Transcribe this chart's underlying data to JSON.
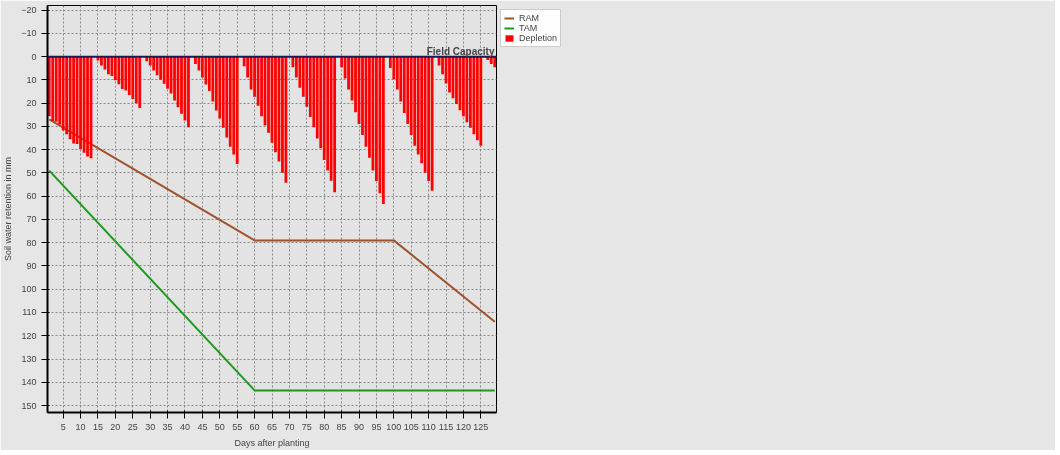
{
  "chart_data": {
    "type": "bar",
    "xlabel": "Days after planting",
    "ylabel": "Soil water retention in mm",
    "x": [
      1,
      2,
      3,
      4,
      5,
      6,
      7,
      8,
      9,
      10,
      11,
      12,
      13,
      14,
      15,
      16,
      17,
      18,
      19,
      20,
      21,
      22,
      23,
      24,
      25,
      26,
      27,
      28,
      29,
      30,
      31,
      32,
      33,
      34,
      35,
      36,
      37,
      38,
      39,
      40,
      41,
      42,
      43,
      44,
      45,
      46,
      47,
      48,
      49,
      50,
      51,
      52,
      53,
      54,
      55,
      56,
      57,
      58,
      59,
      60,
      61,
      62,
      63,
      64,
      65,
      66,
      67,
      68,
      69,
      70,
      71,
      72,
      73,
      74,
      75,
      76,
      77,
      78,
      79,
      80,
      81,
      82,
      83,
      84,
      85,
      86,
      87,
      88,
      89,
      90,
      91,
      92,
      93,
      94,
      95,
      96,
      97,
      98,
      99,
      100,
      101,
      102,
      103,
      104,
      105,
      106,
      107,
      108,
      109,
      110,
      111,
      112,
      113,
      114,
      115,
      116,
      117,
      118,
      119,
      120,
      121,
      122,
      123,
      124,
      125,
      126,
      127,
      128,
      129
    ],
    "xlim": [
      0.5,
      129.5
    ],
    "xticks": [
      5,
      10,
      15,
      20,
      25,
      30,
      35,
      40,
      45,
      50,
      55,
      60,
      65,
      70,
      75,
      80,
      85,
      90,
      95,
      100,
      105,
      110,
      115,
      120,
      125
    ],
    "ylim": [
      153,
      -22
    ],
    "yticks": [
      -20,
      -10,
      0,
      10,
      20,
      30,
      40,
      50,
      60,
      70,
      80,
      90,
      100,
      110,
      120,
      130,
      140,
      150
    ],
    "grid": true,
    "legend": "right",
    "series": [
      {
        "name": "RAM",
        "type": "line",
        "color": "#a0522d",
        "x": [
          1,
          60,
          100,
          129
        ],
        "values": [
          27,
          79,
          79,
          114
        ]
      },
      {
        "name": "TAM",
        "type": "line",
        "color": "#1e9a1e",
        "x": [
          1,
          60,
          129
        ],
        "values": [
          49,
          143.5,
          143.5
        ]
      },
      {
        "name": "Depletion",
        "color": "#ff0000",
        "values": [
          25.6,
          27.7,
          28,
          29.2,
          31.7,
          33.4,
          35.5,
          37.3,
          37.6,
          39.7,
          41.3,
          42.9,
          43.7,
          null,
          1.7,
          3.8,
          5.5,
          7.6,
          8.3,
          10.1,
          11.9,
          13.9,
          14.6,
          16.5,
          18.2,
          20,
          22.1,
          null,
          2,
          3.8,
          5.9,
          8,
          9.9,
          11.6,
          13.8,
          15.8,
          18.9,
          21.8,
          24.5,
          27.5,
          30.3,
          null,
          3.1,
          5.9,
          9,
          12,
          14.8,
          19.3,
          23.2,
          26.6,
          30.6,
          34.8,
          38.7,
          42.1,
          46.1,
          null,
          4.1,
          9,
          14.1,
          17.2,
          21.1,
          25.6,
          29.6,
          32.7,
          37,
          41.1,
          45.1,
          49.9,
          54.2,
          null,
          4.5,
          9,
          13.4,
          17.2,
          21.5,
          25.9,
          30.3,
          35.2,
          39.4,
          44.4,
          48.9,
          53.4,
          58.3,
          null,
          4.5,
          9.4,
          14.1,
          18.9,
          23.9,
          28.9,
          33.7,
          38.7,
          43.5,
          48.9,
          53.5,
          58.7,
          63.4,
          null,
          4.9,
          9.7,
          14.1,
          19.3,
          24.2,
          28.9,
          33.7,
          38.3,
          42.1,
          45.8,
          49.9,
          53.5,
          57.6,
          null,
          3.8,
          7.6,
          11.5,
          15.4,
          17.9,
          20.4,
          23,
          25.6,
          28.2,
          30.6,
          33.4,
          35.9,
          38.3,
          null,
          1.4,
          3.1,
          4.5
        ]
      }
    ],
    "ref_lines": [
      {
        "axis": "y",
        "value": 0,
        "label": "Field Capacity",
        "color": "#1a1a4a"
      }
    ]
  }
}
